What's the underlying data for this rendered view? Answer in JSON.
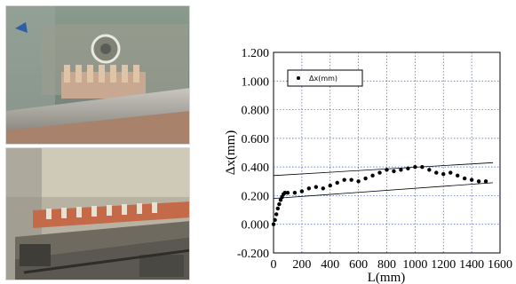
{
  "photos": [
    {
      "name": "photo-slider-fixture",
      "description_icon": "photo"
    },
    {
      "name": "photo-measurement-rig",
      "description_icon": "photo"
    }
  ],
  "chart_data": {
    "type": "scatter",
    "xlabel": "L(mm)",
    "ylabel": "Δx(mm)",
    "xlim": [
      0,
      1600
    ],
    "ylim": [
      -0.2,
      1.2
    ],
    "xticks": [
      0,
      200,
      400,
      600,
      800,
      1000,
      1200,
      1400,
      1600
    ],
    "xtick_labels": [
      "0",
      "200",
      "400",
      "600",
      "800",
      "1000",
      "1200",
      "1400",
      "1600"
    ],
    "yticks": [
      -0.2,
      0,
      0.2,
      0.4,
      0.6,
      0.8,
      1.0,
      1.2
    ],
    "ytick_labels": [
      "-0.200",
      "0.000",
      "0.200",
      "0.400",
      "0.600",
      "0.800",
      "1.000",
      "1.200"
    ],
    "grid": true,
    "legend_position": "top-left",
    "series": [
      {
        "name": "Δx(mm)",
        "color": "#000000",
        "x": [
          0,
          10,
          20,
          30,
          40,
          50,
          60,
          70,
          80,
          100,
          150,
          200,
          250,
          300,
          350,
          400,
          450,
          500,
          550,
          600,
          650,
          700,
          750,
          800,
          850,
          900,
          950,
          1000,
          1050,
          1100,
          1150,
          1200,
          1250,
          1300,
          1350,
          1400,
          1450,
          1500
        ],
        "y": [
          0.0,
          0.03,
          0.07,
          0.11,
          0.14,
          0.17,
          0.19,
          0.21,
          0.22,
          0.22,
          0.22,
          0.23,
          0.25,
          0.26,
          0.25,
          0.27,
          0.29,
          0.31,
          0.31,
          0.3,
          0.32,
          0.34,
          0.36,
          0.38,
          0.37,
          0.38,
          0.39,
          0.4,
          0.4,
          0.38,
          0.36,
          0.35,
          0.36,
          0.34,
          0.32,
          0.31,
          0.3,
          0.3
        ]
      }
    ],
    "reference_lines": [
      {
        "x": [
          0,
          1550
        ],
        "y": [
          0.34,
          0.43
        ]
      },
      {
        "x": [
          0,
          1550
        ],
        "y": [
          0.18,
          0.29
        ]
      }
    ]
  }
}
